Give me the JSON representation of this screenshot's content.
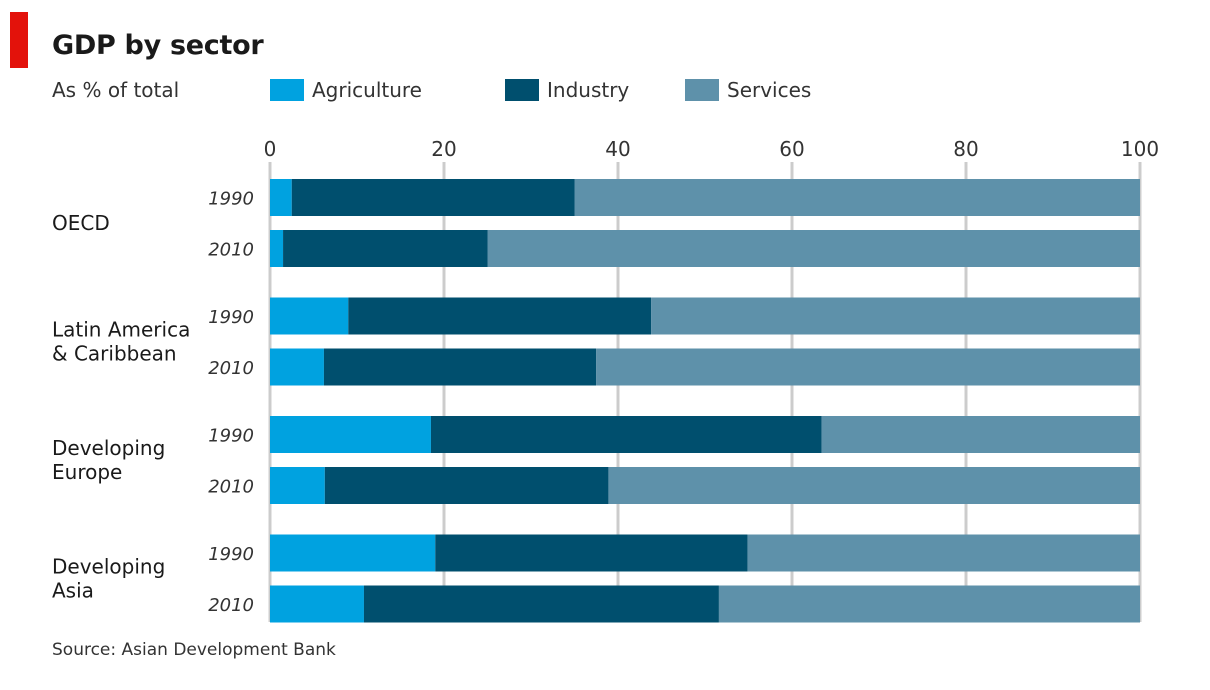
{
  "title": "GDP by sector",
  "subtitle": "As % of total",
  "source": "Source: Asian Development Bank",
  "colors": {
    "agriculture": "#00a2e0",
    "industry": "#004f6e",
    "services": "#5e91aa",
    "accent": "#e3120b",
    "grid": "#cccccc"
  },
  "legend": [
    {
      "label": "Agriculture",
      "color": "#00a2e0"
    },
    {
      "label": "Industry",
      "color": "#004f6e"
    },
    {
      "label": "Services",
      "color": "#5e91aa"
    }
  ],
  "chart_data": {
    "type": "bar",
    "orientation": "horizontal",
    "stacked": true,
    "title": "GDP by sector",
    "subtitle": "As % of total",
    "xlim": [
      0,
      100
    ],
    "xticks": [
      0,
      20,
      40,
      60,
      80,
      100
    ],
    "grid": true,
    "legend_position": "top",
    "series_names": [
      "Agriculture",
      "Industry",
      "Services"
    ],
    "groups": [
      {
        "name": "OECD",
        "rows": [
          {
            "year": "1990",
            "values": [
              2.5,
              32.5,
              65.0
            ]
          },
          {
            "year": "2010",
            "values": [
              1.5,
              23.5,
              75.0
            ]
          }
        ]
      },
      {
        "name": "Latin America & Caribbean",
        "rows": [
          {
            "year": "1990",
            "values": [
              9.0,
              34.8,
              56.2
            ]
          },
          {
            "year": "2010",
            "values": [
              6.2,
              31.3,
              62.5
            ]
          }
        ]
      },
      {
        "name": "Developing Europe",
        "rows": [
          {
            "year": "1990",
            "values": [
              18.5,
              44.9,
              36.6
            ]
          },
          {
            "year": "2010",
            "values": [
              6.3,
              32.6,
              61.1
            ]
          }
        ]
      },
      {
        "name": "Developing Asia",
        "rows": [
          {
            "year": "1990",
            "values": [
              19.0,
              35.9,
              45.1
            ]
          },
          {
            "year": "2010",
            "values": [
              10.8,
              40.8,
              48.4
            ]
          }
        ]
      }
    ]
  }
}
